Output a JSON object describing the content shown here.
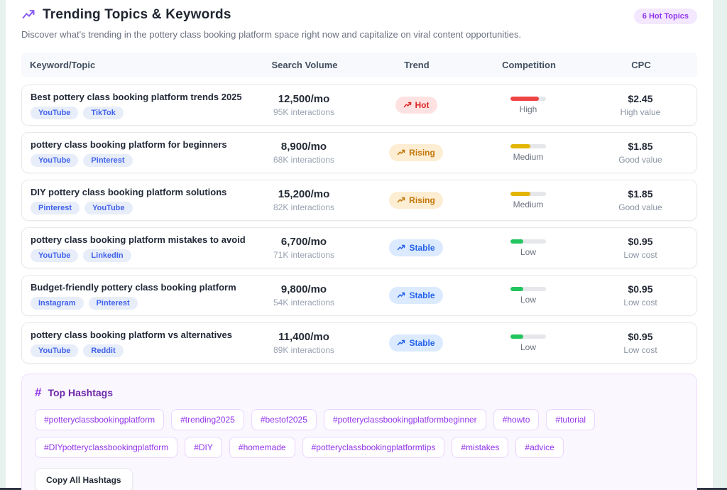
{
  "header": {
    "title": "Trending Topics & Keywords",
    "subtitle": "Discover what's trending in the pottery class booking platform space right now and capitalize on viral content opportunities.",
    "badge": "6 Hot Topics"
  },
  "table": {
    "columns": {
      "keyword": "Keyword/Topic",
      "volume": "Search Volume",
      "trend": "Trend",
      "competition": "Competition",
      "cpc": "CPC"
    },
    "rows": [
      {
        "keyword": "Best pottery class booking platform trends 2025",
        "platforms": [
          "YouTube",
          "TikTok"
        ],
        "search_volume": "12,500/mo",
        "interactions": "95K interactions",
        "trend_label": "Hot",
        "trend_type": "hot",
        "competition_level": "High",
        "competition_key": "high",
        "competition_percent": 80,
        "cpc": "$2.45",
        "cpc_note": "High value"
      },
      {
        "keyword": "pottery class booking platform for beginners",
        "platforms": [
          "YouTube",
          "Pinterest"
        ],
        "search_volume": "8,900/mo",
        "interactions": "68K interactions",
        "trend_label": "Rising",
        "trend_type": "rising",
        "competition_level": "Medium",
        "competition_key": "medium",
        "competition_percent": 55,
        "cpc": "$1.85",
        "cpc_note": "Good value"
      },
      {
        "keyword": "DIY pottery class booking platform solutions",
        "platforms": [
          "Pinterest",
          "YouTube"
        ],
        "search_volume": "15,200/mo",
        "interactions": "82K interactions",
        "trend_label": "Rising",
        "trend_type": "rising",
        "competition_level": "Medium",
        "competition_key": "medium",
        "competition_percent": 55,
        "cpc": "$1.85",
        "cpc_note": "Good value"
      },
      {
        "keyword": "pottery class booking platform mistakes to avoid",
        "platforms": [
          "YouTube",
          "LinkedIn"
        ],
        "search_volume": "6,700/mo",
        "interactions": "71K interactions",
        "trend_label": "Stable",
        "trend_type": "stable",
        "competition_level": "Low",
        "competition_key": "low",
        "competition_percent": 35,
        "cpc": "$0.95",
        "cpc_note": "Low cost"
      },
      {
        "keyword": "Budget-friendly pottery class booking platform",
        "platforms": [
          "Instagram",
          "Pinterest"
        ],
        "search_volume": "9,800/mo",
        "interactions": "54K interactions",
        "trend_label": "Stable",
        "trend_type": "stable",
        "competition_level": "Low",
        "competition_key": "low",
        "competition_percent": 35,
        "cpc": "$0.95",
        "cpc_note": "Low cost"
      },
      {
        "keyword": "pottery class booking platform vs alternatives",
        "platforms": [
          "YouTube",
          "Reddit"
        ],
        "search_volume": "11,400/mo",
        "interactions": "89K interactions",
        "trend_label": "Stable",
        "trend_type": "stable",
        "competition_level": "Low",
        "competition_key": "low",
        "competition_percent": 35,
        "cpc": "$0.95",
        "cpc_note": "Low cost"
      }
    ]
  },
  "hashtags": {
    "title": "Top Hashtags",
    "hash_glyph": "#",
    "tags": [
      "#potteryclassbookingplatform",
      "#trending2025",
      "#bestof2025",
      "#potteryclassbookingplatformbeginner",
      "#howto",
      "#tutorial",
      "#DIYpotteryclassbookingplatform",
      "#DIY",
      "#homemade",
      "#potteryclassbookingplatformtips",
      "#mistakes",
      "#advice"
    ],
    "copy_button": "Copy All Hashtags"
  },
  "colors": {
    "accent_purple": "#8b5cf6",
    "badge_bg": "#f3e8ff",
    "badge_text": "#9333ea",
    "competition_high": "#ef4444",
    "competition_medium": "#e3b505",
    "competition_low": "#22c55e",
    "trend_hot_bg": "#fee2e2",
    "trend_hot_text": "#dc2626",
    "trend_rising_bg": "#fdeed3",
    "trend_rising_text": "#c2760a",
    "trend_stable_bg": "#dbeafe",
    "trend_stable_text": "#2563eb",
    "platform_tag_bg": "#e7edf9",
    "platform_tag_text": "#4263eb"
  }
}
